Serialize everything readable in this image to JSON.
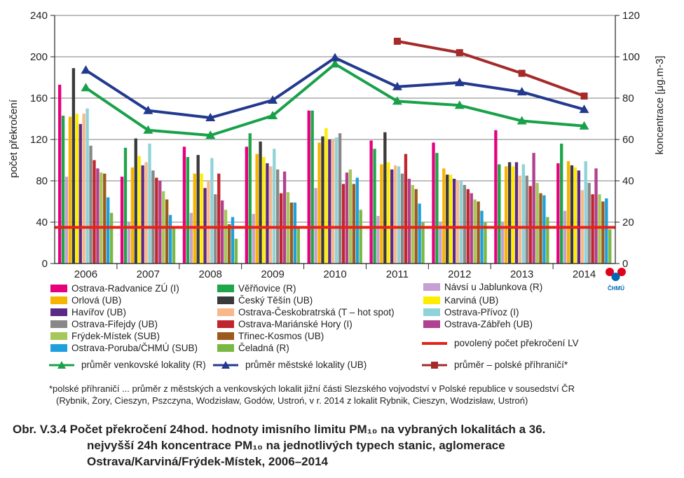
{
  "chart_data": {
    "type": "bar+line",
    "categories": [
      "2006",
      "2007",
      "2008",
      "2009",
      "2010",
      "2011",
      "2012",
      "2013",
      "2014"
    ],
    "ylabel_left": "počet překročení",
    "ylabel_right": "koncentrace [μg.m-3]",
    "ylim_left": [
      0,
      240
    ],
    "ylim_right": [
      0,
      120
    ],
    "yticks_left": [
      "0",
      "40",
      "80",
      "120",
      "160",
      "200",
      "240"
    ],
    "yticks_right": [
      "0",
      "20",
      "40",
      "60",
      "80",
      "100",
      "120"
    ],
    "grid": true,
    "bar_series": [
      {
        "name": "Ostrava-Radvanice ZÚ (I)",
        "color": "#e6007e",
        "values": [
          173,
          84,
          113,
          113,
          148,
          119,
          117,
          129,
          97
        ]
      },
      {
        "name": "Věřňovice (R)",
        "color": "#1fa64a",
        "values": [
          143,
          112,
          103,
          126,
          148,
          111,
          107,
          96,
          116
        ]
      },
      {
        "name": "Návsí u Jablunkova (R)",
        "color": "#c7a0d3",
        "values": [
          84,
          40,
          49,
          48,
          73,
          46,
          40,
          40,
          51
        ]
      },
      {
        "name": "Orlová (UB)",
        "color": "#f7b500",
        "values": [
          142,
          93,
          87,
          106,
          117,
          96,
          92,
          94,
          99
        ]
      },
      {
        "name": "Český Těšín (UB)",
        "color": "#3a3a3a",
        "values": [
          189,
          121,
          105,
          118,
          123,
          127,
          86,
          98,
          95
        ]
      },
      {
        "name": "Karviná (UB)",
        "color": "#ffed00",
        "values": [
          145,
          104,
          87,
          103,
          131,
          98,
          86,
          94,
          93
        ]
      },
      {
        "name": "Havířov (UB)",
        "color": "#5b2a86",
        "values": [
          135,
          95,
          73,
          97,
          120,
          91,
          82,
          98,
          90
        ]
      },
      {
        "name": "Ostrava-Českobratrská (T – hot spot)",
        "color": "#f8b889",
        "values": [
          145,
          98,
          80,
          94,
          120,
          95,
          80,
          85,
          71
        ]
      },
      {
        "name": "Ostrava-Přívoz (I)",
        "color": "#8fd3d9",
        "values": [
          150,
          116,
          102,
          111,
          122,
          94,
          80,
          96,
          99
        ]
      },
      {
        "name": "Ostrava-Fifejdy (UB)",
        "color": "#888888",
        "values": [
          114,
          90,
          67,
          91,
          126,
          87,
          76,
          85,
          78
        ]
      },
      {
        "name": "Ostrava-Mariánské Hory (I)",
        "color": "#c0262d",
        "values": [
          100,
          83,
          87,
          68,
          77,
          106,
          72,
          75,
          67
        ]
      },
      {
        "name": "Ostrava-Zábřeh (UB)",
        "color": "#b0418f",
        "values": [
          92,
          80,
          61,
          89,
          88,
          82,
          68,
          107,
          92
        ]
      },
      {
        "name": "Frýdek-Místek (SUB)",
        "color": "#a6c75a",
        "values": [
          88,
          70,
          52,
          69,
          91,
          76,
          62,
          78,
          67
        ]
      },
      {
        "name": "Třinec-Kosmos (UB)",
        "color": "#9d5a1e",
        "values": [
          87,
          62,
          38,
          59,
          77,
          72,
          60,
          68,
          60
        ]
      },
      {
        "name": "Ostrava-Poruba/ČHMÚ (SUB)",
        "color": "#1ea0dc",
        "values": [
          64,
          47,
          45,
          59,
          83,
          58,
          51,
          66,
          63
        ]
      },
      {
        "name": "Čeladná (R)",
        "color": "#7ab843",
        "values": [
          49,
          35,
          24,
          36,
          52,
          40,
          40,
          45,
          33
        ]
      }
    ],
    "limit_line": {
      "name": "povolený počet překročení LV",
      "color": "#e5231b",
      "value": 35
    },
    "line_series": [
      {
        "name": "průměr venkovské lokality (R)",
        "color": "#19a14a",
        "x_index": [
          0,
          1,
          2,
          3,
          4,
          5,
          6,
          7,
          8
        ],
        "values": [
          85,
          64.5,
          62,
          71.5,
          96.5,
          78.5,
          76.5,
          69,
          66.5
        ]
      },
      {
        "name": "průměr městské lokality (UB)",
        "color": "#23398e",
        "x_index": [
          0,
          1,
          2,
          3,
          4,
          5,
          6,
          7,
          8
        ],
        "values": [
          93.5,
          74,
          70.5,
          79,
          99.5,
          85.5,
          87.5,
          83,
          74.5
        ]
      },
      {
        "name": "průměr – polské příhraničí*",
        "color": "#a52a2a",
        "x_index": [
          5,
          6,
          7,
          8
        ],
        "values": [
          107.5,
          102,
          92,
          81
        ]
      }
    ]
  },
  "legend": {
    "col1": [
      "Ostrava-Radvanice ZÚ (I)",
      "Orlová (UB)",
      "Havířov (UB)",
      "Ostrava-Fifejdy (UB)",
      "Frýdek-Místek (SUB)",
      "Ostrava-Poruba/ČHMÚ (SUB)"
    ],
    "col2": [
      "Věřňovice (R)",
      "Český Těšín (UB)",
      "Ostrava-Českobratrská (T – hot spot)",
      "Ostrava-Mariánské Hory (I)",
      "Třinec-Kosmos (UB)",
      "Čeladná (R)"
    ],
    "col3": [
      "Návsí u Jablunkova (R)",
      "Karviná (UB)",
      "Ostrava-Přívoz (I)",
      "Ostrava-Zábřeh (UB)"
    ],
    "limit": "povolený počet překročení LV",
    "avg_rural": "průměr venkovské lokality (R)",
    "avg_urban": "průměr městské lokality (UB)",
    "avg_polish": "průměr – polské příhraničí*"
  },
  "footnote": {
    "line1": "*polské příhraničí ... průměr z městských a venkovských lokalit jižní části Slezského vojvodství v Polské republice v sousedství ČR",
    "line2": "(Rybnik, Żory, Cieszyn, Pszczyna, Wodzisław, Godów, Ustroń, v r. 2014 z lokalit Rybnik, Cieszyn, Wodzisław, Ustroń)"
  },
  "caption": {
    "line1": "Obr. V.3.4  Počet překročení 24hod. hodnoty imisního limitu PM₁₀ na vybraných lokalitách a 36.",
    "line2": "nejvyšší 24h koncentrace PM₁₀ na jednotlivých typech stanic, aglomerace",
    "line3": "Ostrava/Karviná/Frýdek-Místek, 2006–2014"
  },
  "logo": {
    "text": "ČHMÚ",
    "colors": [
      "#e2001a",
      "#0069b4"
    ]
  }
}
